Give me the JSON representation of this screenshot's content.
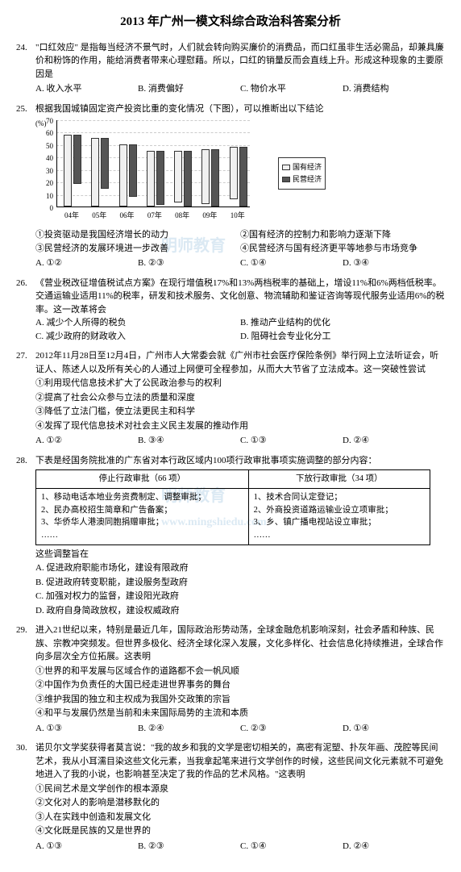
{
  "title": "2013 年广州一模文科综合政治科答案分析",
  "watermark_text": "明师教育",
  "watermark_url": "www.mingshiedu.com",
  "chart": {
    "type": "bar",
    "ylabel": "(%)",
    "ymin": 0,
    "ymax": 70,
    "ystep": 10,
    "years": [
      "04年",
      "05年",
      "06年",
      "07年",
      "08年",
      "09年",
      "10年"
    ],
    "series": [
      {
        "name": "国有经济",
        "color": "#f0f0f0",
        "values": [
          58,
          55,
          50,
          45,
          42,
          44,
          42
        ]
      },
      {
        "name": "民营经济",
        "color": "#555555",
        "values": [
          40,
          41,
          42,
          44,
          45,
          46,
          48
        ]
      }
    ]
  },
  "q24": {
    "num": "24.",
    "stem": "\"口红效应\" 是指每当经济不景气时，人们就会转向购买廉价的消费品，而口红虽非生活必需品，却兼具廉价和粉饰的作用，能给消费者带来心理慰藉。所以，口红的销量反而会直线上升。形成这种现象的主要原因是",
    "opts": [
      "A. 收入水平",
      "B. 消费偏好",
      "C. 物价水平",
      "D. 消费结构"
    ]
  },
  "q25": {
    "num": "25.",
    "stem": "根据我国城镇固定资产投资比重的变化情况（下图），可以推断出以下结论",
    "subs": [
      "①投资驱动是我国经济增长的动力",
      "②国有经济的控制力和影响力逐渐下降",
      "③民营经济的发展环境进一步改善",
      "④民营经济与国有经济更平等地参与市场竞争"
    ],
    "opts": [
      "A. ①②",
      "B. ②③",
      "C. ①④",
      "D. ③④"
    ]
  },
  "q26": {
    "num": "26.",
    "stem": "《营业税改征增值税试点方案》在现行增值税17%和13%两档税率的基础上，增设11%和6%两档低税率。交通运输业适用11%的税率，研发和技术服务、文化创意、物流辅助和鉴证咨询等现代服务业适用6%的税率。这一改革将会",
    "subs": [
      "A. 减少个人所得的税负",
      "B. 推动产业结构的优化",
      "C. 减少政府的财政收入",
      "D. 阻碍社会专业化分工"
    ]
  },
  "q27": {
    "num": "27.",
    "stem": "2012年11月28日至12月4日，广州市人大常委会就《广州市社会医疗保险条例》举行网上立法听证会，听证人、陈述人以及所有关心的人通过上网便可全程参加，从而大大节省了立法成本。这一突破性尝试",
    "subs": [
      "①利用现代信息技术扩大了公民政治参与的权利",
      "②提高了社会公众参与立法的质量和深度",
      "③降低了立法门槛，使立法更民主和科学",
      "④发挥了现代信息技术对社会主义民主发展的推动作用"
    ],
    "opts": [
      "A. ①②",
      "B. ③④",
      "C. ①③",
      "D. ②④"
    ]
  },
  "q28": {
    "num": "28.",
    "stem": "下表是经国务院批准的广东省对本行政区域内100项行政审批事项实施调整的部分内容：",
    "table": {
      "h1": "停止行政审批（66 项）",
      "h2": "下放行政审批（34 项）",
      "left": "1、移动电话本地业务资费制定、调整审批；\n2、民办高校招生简章和广告备案；\n3、华侨华人港澳同胞捐赠审批；\n……",
      "right": "1、技术合同认定登记；\n2、外商投资道路运输业设立项审批；\n3、乡、镇广播电视站设立审批；\n……"
    },
    "mid": "这些调整旨在",
    "subs": [
      "A. 促进政府职能市场化，建设有限政府",
      "B. 促进政府转变职能，建设服务型政府",
      "C. 加强对权力的监督，建设阳光政府",
      "D. 政府自身简政放权，建设权威政府"
    ]
  },
  "q29": {
    "num": "29.",
    "stem": "进入21世纪以来，特别是最近几年，国际政治形势动荡，全球金融危机影响深刻，社会矛盾和种族、民族、宗教冲突频发。但世界多极化、经济全球化深入发展，文化多样化、社会信息化持续推进，全球合作向多层次全方位拓展。这表明",
    "subs": [
      "①世界的和平发展与区域合作的道路都不会一帆风顺",
      "②中国作为负责任的大国已经走进世界事务的舞台",
      "③维护我国的独立和主权成为我国外交政策的宗旨",
      "④和平与发展仍然是当前和未来国际局势的主流和本质"
    ],
    "opts": [
      "A. ①③",
      "B. ②④",
      "C. ②③",
      "D. ①④"
    ]
  },
  "q30": {
    "num": "30.",
    "stem": "诺贝尔文学奖获得者莫言说：\"我的故乡和我的文学是密切相关的，高密有泥塑、扑灰年画、茂腔等民间艺术，我从小耳濡目染这些文化元素，当我拿起笔来进行文学创作的时候，这些民间文化元素就不可避免地进入了我的小说，也影响甚至决定了我的作品的艺术风格。\"这表明",
    "subs": [
      "①民间艺术是文学创作的根本源泉",
      "②文化对人的影响是潜移默化的",
      "③人在实践中创造和发展文化",
      "④文化既是民族的又是世界的"
    ],
    "opts": [
      "A. ①③",
      "B. ②③",
      "C. ①④",
      "D. ②④"
    ]
  }
}
